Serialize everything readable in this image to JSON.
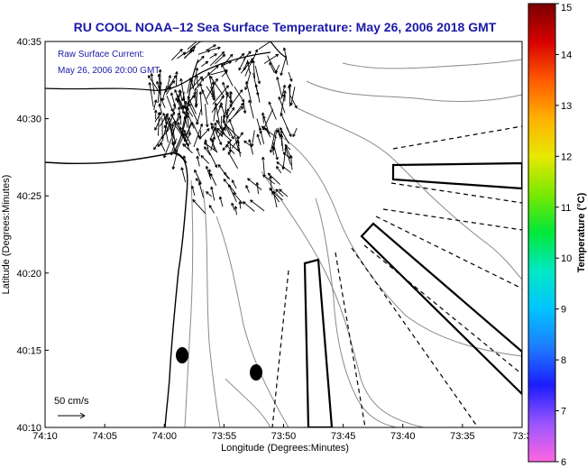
{
  "title": "RU COOL  NOAA–12  Sea Surface Temperature:  May 26, 2006 2018 GMT",
  "current_label": "Raw Surface Current:",
  "current_time": "May 26, 2006 20:00 GMT",
  "scale_label": "50 cm/s",
  "x_axis_label": "Longitude (Degrees:Minutes)",
  "y_axis_label": "Latitude (Degrees:Minutes)",
  "x_ticks": [
    "74:10",
    "74:05",
    "74:00",
    "73:55",
    "73:50",
    "73:45",
    "73:40",
    "73:35",
    "73:3"
  ],
  "y_ticks": [
    "40:35",
    "40:30",
    "40:25",
    "40:20",
    "40:15",
    "40:10"
  ],
  "colorbar": {
    "label": "Temperature (°C)",
    "ticks": [
      "15",
      "14",
      "13",
      "12",
      "11",
      "10",
      "9",
      "8",
      "7",
      "6"
    ],
    "range": [
      6,
      15
    ],
    "stops": [
      "#ff66e0",
      "#9a55ff",
      "#1c1cff",
      "#1e7cff",
      "#00c4ff",
      "#00e8c4",
      "#00e83a",
      "#7ae800",
      "#e8e800",
      "#ffb000",
      "#ff5a00",
      "#d80000",
      "#7a0000"
    ]
  },
  "colors": {
    "title": "#1a1aa6",
    "contour": "#8a8a8a"
  }
}
